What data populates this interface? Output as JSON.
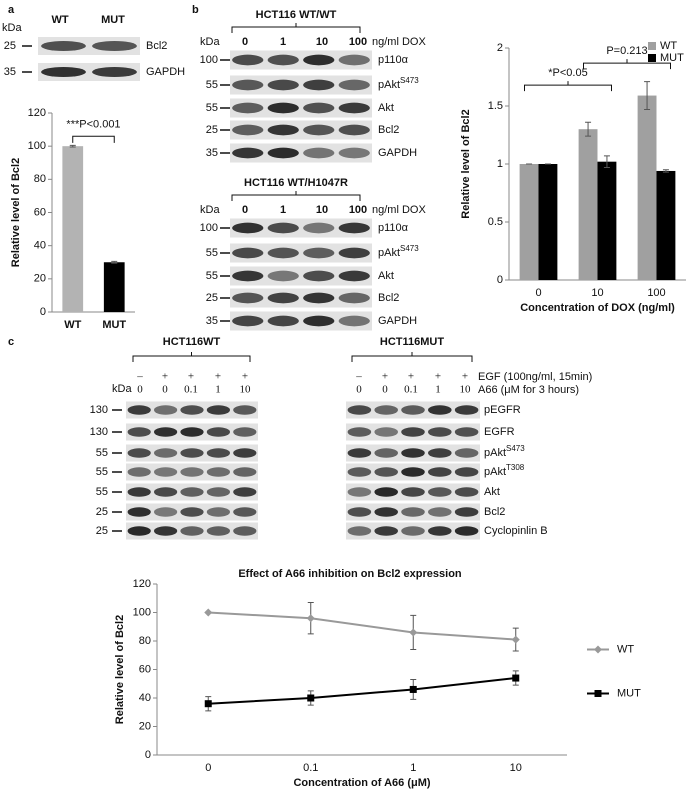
{
  "panels": [
    "a",
    "b",
    "c"
  ],
  "blot_a": {
    "kda": "kDa",
    "lanes": [
      "WT",
      "MUT"
    ],
    "markers": [
      "25",
      "35"
    ],
    "rows": [
      [
        "Bcl2"
      ],
      [
        "GAPDH"
      ]
    ]
  },
  "blot_b1": {
    "title": "HCT116 WT/WT",
    "kda": "kDa",
    "lanes": [
      "0",
      "1",
      "10",
      "100"
    ],
    "unit": "ng/ml DOX",
    "markers": [
      "100",
      "55",
      "55",
      "25",
      "35"
    ],
    "rows": [
      [
        "p110α"
      ],
      [
        "pAkt",
        "S473"
      ],
      [
        "Akt"
      ],
      [
        "Bcl2"
      ],
      [
        "GAPDH"
      ]
    ]
  },
  "blot_b2": {
    "title": "HCT116 WT/H1047R",
    "kda": "kDa",
    "lanes": [
      "0",
      "1",
      "10",
      "100"
    ],
    "unit": "ng/ml DOX",
    "markers": [
      "100",
      "55",
      "55",
      "25",
      "35"
    ],
    "rows": [
      [
        "p110α"
      ],
      [
        "pAkt",
        "S473"
      ],
      [
        "Akt"
      ],
      [
        "Bcl2"
      ],
      [
        "GAPDH"
      ]
    ]
  },
  "blot_c": {
    "groups": [
      "HCT116WT",
      "HCT116MUT"
    ],
    "kda": "kDa",
    "egf_label": "EGF (100ng/ml, 15min)",
    "a66_label": "A66 (μM for 3 hours)",
    "egf": [
      "–",
      "+",
      "+",
      "+",
      "+"
    ],
    "a66": [
      "0",
      "0",
      "0.1",
      "1",
      "10"
    ],
    "markers": [
      "130",
      "130",
      "55",
      "55",
      "55",
      "25",
      "25"
    ],
    "rows": [
      [
        "pEGFR"
      ],
      [
        "EGFR"
      ],
      [
        "pAkt",
        "S473"
      ],
      [
        "pAkt",
        "T308"
      ],
      [
        "Akt"
      ],
      [
        "Bcl2"
      ],
      [
        "Cyclopinlin B"
      ]
    ]
  },
  "chart_data": [
    {
      "type": "bar",
      "y_label": "Relative level of Bcl2",
      "categories": [
        "WT",
        "MUT"
      ],
      "values": [
        100,
        30
      ],
      "errors": [
        0.5,
        0.5
      ],
      "colors": [
        "#b3b3b3",
        "#000000"
      ],
      "ylim": [
        0,
        120
      ],
      "yticks": [
        0,
        20,
        40,
        60,
        80,
        100,
        120
      ],
      "annotations": [
        "***P<0.001"
      ]
    },
    {
      "type": "bar",
      "y_label": "Relative level of Bcl2",
      "x_label": "Concentration of DOX (ng/ml)",
      "categories": [
        "0",
        "10",
        "100"
      ],
      "series": [
        {
          "name": "WT",
          "color": "#a0a0a0",
          "values": [
            1,
            1.3,
            1.59
          ],
          "errors": [
            0,
            0.06,
            0.12
          ]
        },
        {
          "name": "MUT",
          "color": "#000000",
          "values": [
            1,
            1.02,
            0.94
          ],
          "errors": [
            0,
            0.05,
            0.01
          ]
        }
      ],
      "ylim": [
        0,
        2
      ],
      "yticks": [
        0,
        0.5,
        1,
        1.5,
        2
      ],
      "legend": "upper right",
      "annotations": [
        "*P<0.05",
        "P=0.213"
      ]
    },
    {
      "type": "line",
      "title": "Effect of A66 inhibition on Bcl2 expression",
      "y_label": "Relative level of Bcl2",
      "x_label": "Concentration of A66 (μM)",
      "categories": [
        "0",
        "0.1",
        "1",
        "10"
      ],
      "series": [
        {
          "name": "WT",
          "color": "#999999",
          "marker": "diamond",
          "values": [
            100,
            96,
            86,
            81
          ],
          "errors": [
            0,
            11,
            12,
            8
          ]
        },
        {
          "name": "MUT",
          "color": "#000000",
          "marker": "square",
          "values": [
            36,
            40,
            46,
            54
          ],
          "errors": [
            5,
            5,
            7,
            5
          ]
        }
      ],
      "ylim": [
        0,
        120
      ],
      "yticks": [
        0,
        20,
        40,
        60,
        80,
        100,
        120
      ],
      "legend": "right"
    }
  ]
}
